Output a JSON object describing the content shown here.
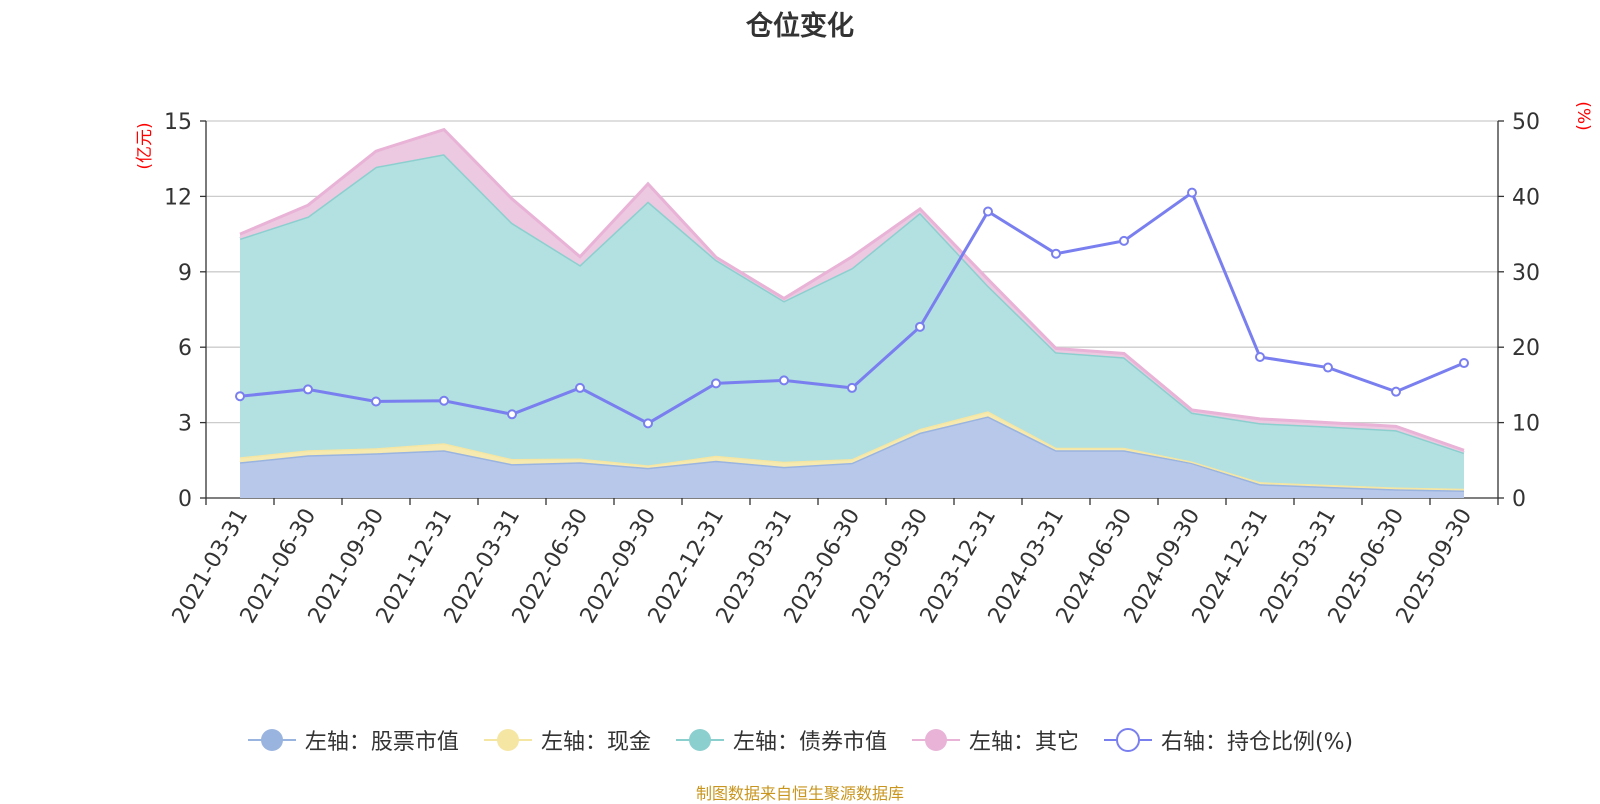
{
  "chart_data": {
    "type": "area",
    "title": "仓位变化",
    "left_axis_unit": "(亿元)",
    "right_axis_unit": "(%)",
    "ylim_left": [
      0,
      15
    ],
    "yticks_left": [
      "0",
      "3",
      "6",
      "9",
      "12",
      "15"
    ],
    "ylim_right": [
      0,
      50
    ],
    "yticks_right": [
      "0",
      "10",
      "20",
      "30",
      "40",
      "50"
    ],
    "categories": [
      "2021-03-31",
      "2021-06-30",
      "2021-09-30",
      "2021-12-31",
      "2022-03-31",
      "2022-06-30",
      "2022-09-30",
      "2022-12-31",
      "2023-03-31",
      "2023-06-30",
      "2023-09-30",
      "2023-12-31",
      "2024-03-31",
      "2024-06-30",
      "2024-09-30",
      "2024-12-31",
      "2025-03-31",
      "2025-06-30",
      "2025-09-30"
    ],
    "stacked_series": [
      {
        "name": "左轴：股票市值",
        "color": "#9ab4e0",
        "fill": "#b7c8ea",
        "values": [
          1.42,
          1.7,
          1.78,
          1.9,
          1.35,
          1.42,
          1.2,
          1.48,
          1.24,
          1.4,
          2.6,
          3.25,
          1.9,
          1.9,
          1.4,
          0.55,
          0.45,
          0.35,
          0.3
        ]
      },
      {
        "name": "左轴：现金",
        "color": "#f5e6a3",
        "fill": "#f7eab0",
        "values": [
          0.2,
          0.2,
          0.2,
          0.28,
          0.2,
          0.15,
          0.1,
          0.2,
          0.2,
          0.15,
          0.15,
          0.2,
          0.1,
          0.1,
          0.05,
          0.08,
          0.07,
          0.07,
          0.07
        ]
      },
      {
        "name": "左轴：债券市值",
        "color": "#8ccfcf",
        "fill": "#b3e0e0",
        "values": [
          8.7,
          9.3,
          11.2,
          11.5,
          9.4,
          7.7,
          10.5,
          7.8,
          6.4,
          7.6,
          8.6,
          5.0,
          3.8,
          3.6,
          1.95,
          2.35,
          2.33,
          2.28,
          1.43
        ]
      },
      {
        "name": "左轴：其它",
        "color": "#e8b3d6",
        "fill": "#ecc9e1",
        "values": [
          0.18,
          0.45,
          0.62,
          0.98,
          0.95,
          0.33,
          0.7,
          0.1,
          0.1,
          0.45,
          0.15,
          0.25,
          0.15,
          0.15,
          0.1,
          0.17,
          0.15,
          0.15,
          0.1
        ]
      }
    ],
    "line_series": {
      "name": "右轴：持仓比例(%)",
      "color": "#7a7ff0",
      "values": [
        13.5,
        14.4,
        12.8,
        12.9,
        11.1,
        14.6,
        9.9,
        15.2,
        15.6,
        14.6,
        22.7,
        38.0,
        32.4,
        34.1,
        40.5,
        18.7,
        17.3,
        14.1,
        17.9
      ]
    }
  },
  "legend": [
    {
      "label": "左轴：股票市值",
      "color": "#9ab4e0",
      "marker": "filled"
    },
    {
      "label": "左轴：现金",
      "color": "#f5e6a3",
      "marker": "filled"
    },
    {
      "label": "左轴：债券市值",
      "color": "#8ccfcf",
      "marker": "filled"
    },
    {
      "label": "左轴：其它",
      "color": "#e8b3d6",
      "marker": "filled"
    },
    {
      "label": "右轴：持仓比例(%)",
      "color": "#7a7ff0",
      "marker": "hollow"
    }
  ],
  "source_note": "制图数据来自恒生聚源数据库",
  "colors": {
    "grid": "#cccccc",
    "axis": "#333333",
    "unit": "#ff0000"
  }
}
